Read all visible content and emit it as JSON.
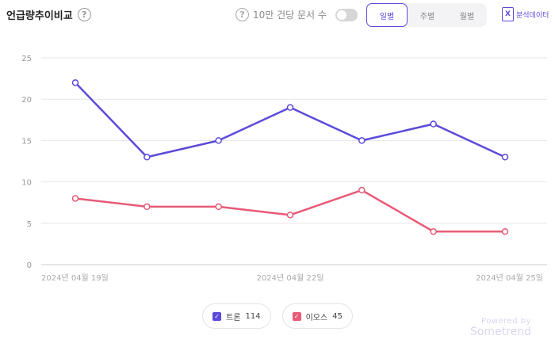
{
  "header": {
    "title": "언급량추이비교",
    "per10k_label": "10만 건당 문서 수",
    "per10k_on": false,
    "period_tabs": [
      {
        "label": "일별",
        "active": true
      },
      {
        "label": "주별",
        "active": false
      },
      {
        "label": "월별",
        "active": false
      }
    ],
    "excel_label": "분석데이터",
    "excel_icon": "excel-icon"
  },
  "chart_data": {
    "type": "line",
    "x": [
      "2024-04-19",
      "2024-04-20",
      "2024-04-21",
      "2024-04-22",
      "2024-04-23",
      "2024-04-24",
      "2024-04-25"
    ],
    "x_tick_labels": [
      "2024년 04월 19일",
      "2024년 04월 22일",
      "2024년 04월 25일"
    ],
    "x_tick_index": [
      0,
      3,
      6
    ],
    "y_ticks": [
      0,
      5,
      10,
      15,
      20,
      25
    ],
    "ylim": [
      0,
      25
    ],
    "grid": true,
    "series": [
      {
        "name": "트론",
        "total": "114",
        "color": "#5b4bdb",
        "values": [
          22,
          13,
          15,
          19,
          15,
          17,
          13
        ]
      },
      {
        "name": "이오스",
        "total": "45",
        "color": "#e85a77",
        "values": [
          8,
          7,
          7,
          6,
          9,
          4,
          4
        ]
      }
    ]
  },
  "footer": {
    "powered_by": "Powered by",
    "brand": "Sometrend"
  }
}
